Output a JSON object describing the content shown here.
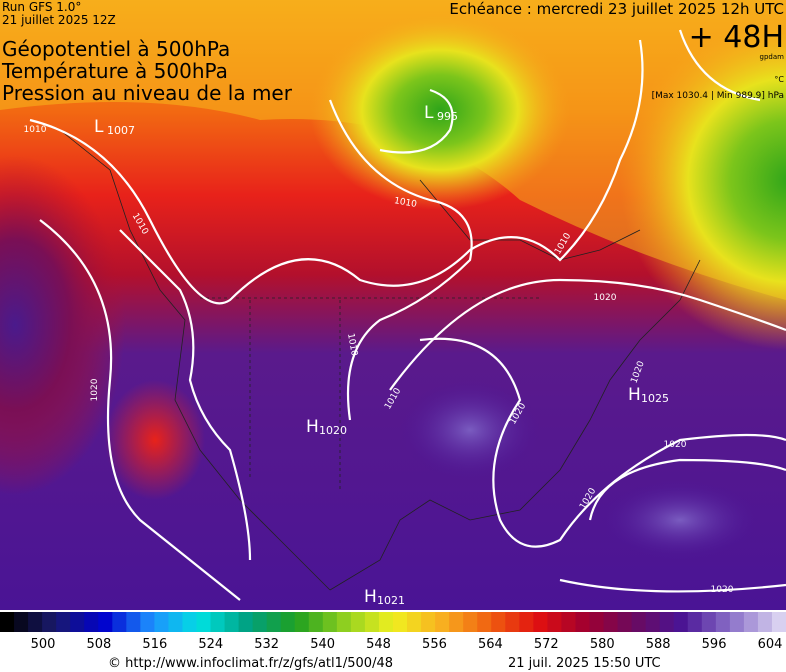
{
  "header": {
    "run": "Run GFS 1.0°",
    "run_date": "21 juillet 2025 12Z",
    "valid": "Echéance : mercredi 23 juillet 2025 12h UTC",
    "lead": "+ 48H",
    "unit_geo": "gpdam",
    "unit_temp": "°C",
    "range": "[Max 1030.4 | Min 989.9] hPa"
  },
  "titles": [
    "Géopotentiel à 500hPa",
    "Température à 500hPa",
    "Pression au niveau de la mer"
  ],
  "centers": [
    {
      "letter": "L",
      "value": "1007"
    },
    {
      "letter": "L",
      "value": "995"
    },
    {
      "letter": "H",
      "value": "1020"
    },
    {
      "letter": "H",
      "value": "1025"
    },
    {
      "letter": "H",
      "value": "1021"
    }
  ],
  "isobar_labels": [
    "1010",
    "1010",
    "1010",
    "1010",
    "1010",
    "1010",
    "1020",
    "1020",
    "1020",
    "1020",
    "1020",
    "1020",
    "1020"
  ],
  "colorbar": {
    "ticks": [
      500,
      508,
      516,
      524,
      532,
      540,
      548,
      556,
      564,
      572,
      580,
      588,
      596,
      604
    ]
  },
  "footer": {
    "source": "© http://www.infoclimat.fr/z/gfs/atl1/500/48",
    "timestamp": "21 juil. 2025 15:50 UTC"
  }
}
